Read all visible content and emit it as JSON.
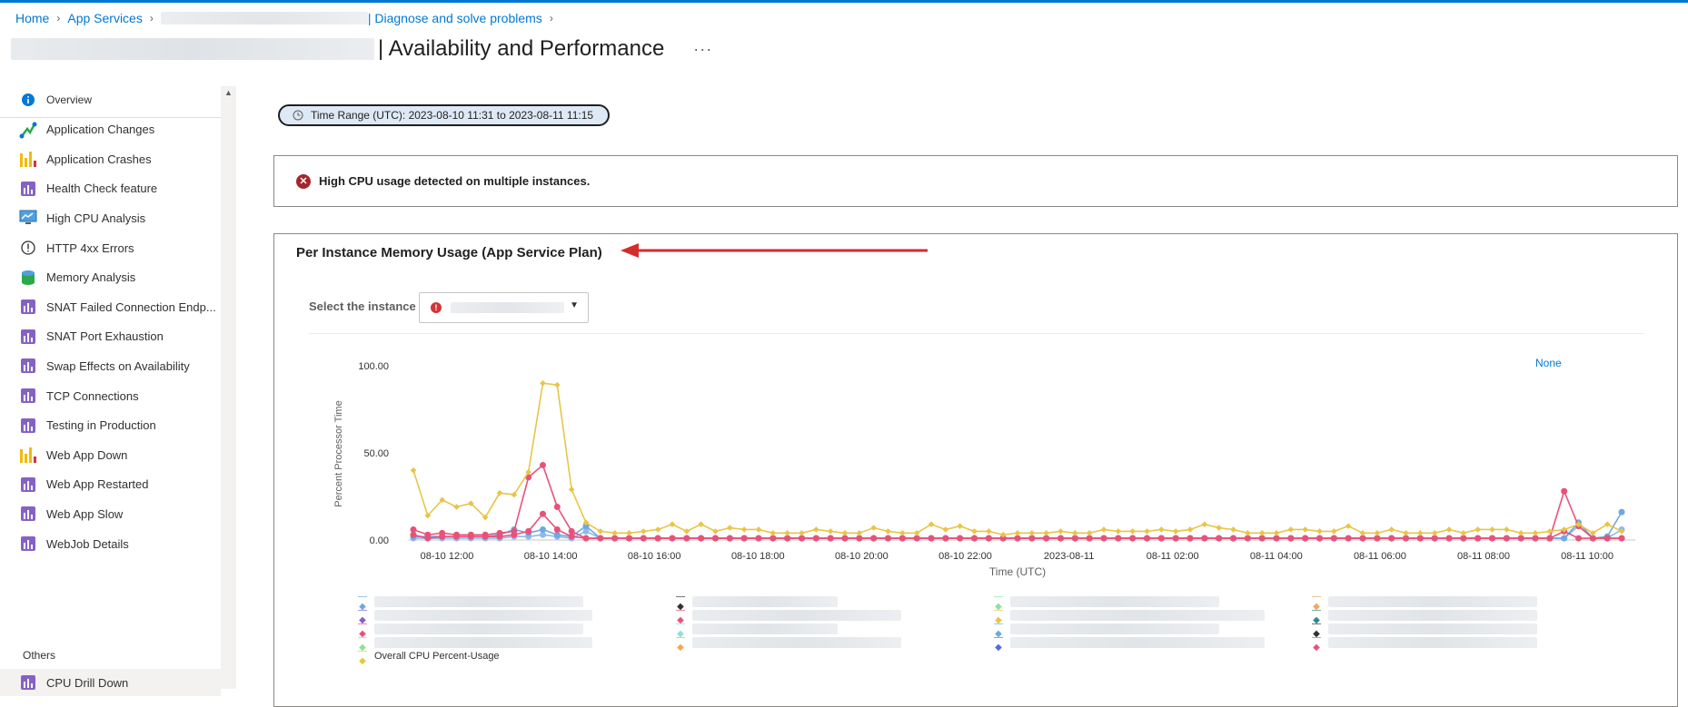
{
  "header": {
    "breadcrumb": [
      "Home",
      "App Services",
      "| Diagnose and solve problems"
    ],
    "title_suffix": "| Availability and Performance",
    "more": "···"
  },
  "sidebar": {
    "items": [
      {
        "label": "Overview",
        "icon": "info-icon",
        "color": "#0078d4"
      },
      {
        "label": "Application Changes",
        "icon": "changes-icon",
        "color": "#2ba84a"
      },
      {
        "label": "Application Crashes",
        "icon": "crash-chart-icon",
        "color": "#f2b90c"
      },
      {
        "label": "Health Check feature",
        "icon": "report-icon",
        "color": "#8661c5"
      },
      {
        "label": "High CPU Analysis",
        "icon": "monitor-icon",
        "color": "#0078d4"
      },
      {
        "label": "HTTP 4xx Errors",
        "icon": "error-circle-icon",
        "color": "#323130"
      },
      {
        "label": "Memory Analysis",
        "icon": "memory-icon",
        "color": "#2ba84a"
      },
      {
        "label": "SNAT Failed Connection Endp...",
        "icon": "report-icon",
        "color": "#8661c5"
      },
      {
        "label": "SNAT Port Exhaustion",
        "icon": "report-icon",
        "color": "#8661c5"
      },
      {
        "label": "Swap Effects on Availability",
        "icon": "report-icon",
        "color": "#8661c5"
      },
      {
        "label": "TCP Connections",
        "icon": "report-icon",
        "color": "#8661c5"
      },
      {
        "label": "Testing in Production",
        "icon": "report-icon",
        "color": "#8661c5"
      },
      {
        "label": "Web App Down",
        "icon": "crash-chart-icon",
        "color": "#f2b90c"
      },
      {
        "label": "Web App Restarted",
        "icon": "report-icon",
        "color": "#8661c5"
      },
      {
        "label": "Web App Slow",
        "icon": "report-icon",
        "color": "#8661c5"
      },
      {
        "label": "WebJob Details",
        "icon": "report-icon",
        "color": "#8661c5"
      }
    ],
    "others_heading": "Others",
    "others_items": [
      {
        "label": "CPU Drill Down",
        "icon": "report-icon",
        "color": "#8661c5"
      }
    ]
  },
  "main": {
    "time_range": "Time Range (UTC): 2023-08-10 11:31 to 2023-08-11 11:15",
    "alert": "High CPU usage detected on multiple instances.",
    "panel_title": "Per Instance Memory Usage (App Service Plan)",
    "select_label": "Select the instance",
    "none_link": "None",
    "legend_visible_label": "Overall CPU Percent-Usage"
  },
  "chart_data": {
    "type": "line",
    "xlabel": "Time (UTC)",
    "ylabel": "Percent Processor Time",
    "yticks": [
      "0.00",
      "50.00",
      "100.00"
    ],
    "ylim": [
      0,
      100
    ],
    "xticks": [
      "08-10 12:00",
      "08-10 14:00",
      "08-10 16:00",
      "08-10 18:00",
      "08-10 20:00",
      "08-10 22:00",
      "2023-08-11",
      "08-11 02:00",
      "08-11 04:00",
      "08-11 06:00",
      "08-11 08:00",
      "08-11 10:00"
    ],
    "series": [
      {
        "name": "Overall CPU Percent-Usage",
        "color": "#e8c547",
        "values": [
          40,
          14,
          23,
          19,
          21,
          13,
          27,
          26,
          39,
          90,
          89,
          29,
          10,
          5,
          4,
          4,
          5,
          6,
          9,
          5,
          9,
          5,
          7,
          6,
          6,
          4,
          4,
          4,
          6,
          5,
          4,
          4,
          7,
          5,
          4,
          4,
          9,
          6,
          8,
          5,
          5,
          3,
          4,
          4,
          4,
          5,
          4,
          4,
          6,
          5,
          5,
          5,
          6,
          5,
          6,
          9,
          7,
          6,
          4,
          4,
          4,
          6,
          6,
          5,
          5,
          8,
          4,
          4,
          6,
          4,
          4,
          4,
          6,
          4,
          6,
          6,
          6,
          4,
          4,
          5,
          6,
          9,
          4,
          9,
          5
        ]
      },
      {
        "color": "#e8527a",
        "values": [
          6,
          3,
          4,
          3,
          3,
          3,
          4,
          5,
          36,
          43,
          19,
          5,
          1,
          1,
          1,
          1,
          1,
          1,
          1,
          1,
          1,
          1,
          1,
          1,
          1,
          1,
          1,
          1,
          1,
          1,
          1,
          1,
          1,
          1,
          1,
          1,
          1,
          1,
          1,
          1,
          1,
          1,
          1,
          1,
          1,
          1,
          1,
          1,
          1,
          1,
          1,
          1,
          1,
          1,
          1,
          1,
          1,
          1,
          1,
          1,
          1,
          1,
          1,
          1,
          1,
          1,
          1,
          1,
          1,
          1,
          1,
          1,
          1,
          1,
          1,
          1,
          1,
          1,
          1,
          1,
          28,
          8,
          1,
          1,
          1
        ]
      },
      {
        "color": "#e8527a",
        "values": [
          3,
          1,
          2,
          2,
          2,
          2,
          2,
          3,
          5,
          15,
          6,
          2,
          1,
          1,
          1,
          1,
          1,
          1,
          1,
          1,
          1,
          1,
          1,
          1,
          1,
          1,
          1,
          1,
          1,
          1,
          1,
          1,
          1,
          1,
          1,
          1,
          1,
          1,
          1,
          1,
          1,
          1,
          1,
          1,
          1,
          1,
          1,
          1,
          1,
          1,
          1,
          1,
          1,
          1,
          1,
          1,
          1,
          1,
          1,
          1,
          1,
          1,
          1,
          1,
          1,
          1,
          1,
          1,
          1,
          1,
          1,
          1,
          1,
          1,
          1,
          1,
          1,
          1,
          1,
          1,
          5,
          1,
          1,
          1,
          1
        ]
      },
      {
        "color": "#6ea8e0",
        "values": [
          2,
          2,
          2,
          2,
          2,
          2,
          3,
          6,
          4,
          6,
          3,
          2,
          8,
          1,
          1,
          1,
          1,
          1,
          1,
          1,
          1,
          1,
          1,
          1,
          1,
          1,
          1,
          1,
          1,
          1,
          1,
          1,
          1,
          1,
          1,
          1,
          1,
          1,
          1,
          1,
          1,
          1,
          1,
          1,
          1,
          1,
          1,
          1,
          1,
          1,
          1,
          1,
          1,
          1,
          1,
          1,
          1,
          1,
          1,
          1,
          1,
          1,
          1,
          1,
          1,
          1,
          1,
          1,
          1,
          1,
          1,
          1,
          1,
          1,
          1,
          1,
          1,
          1,
          1,
          1,
          1,
          10,
          1,
          2,
          16
        ]
      },
      {
        "color": "#8fb9ea",
        "values": [
          1,
          1,
          1,
          1,
          1,
          1,
          1,
          2,
          2,
          3,
          2,
          1,
          5,
          1,
          1,
          1,
          1,
          1,
          1,
          1,
          1,
          1,
          1,
          1,
          1,
          1,
          1,
          1,
          1,
          1,
          1,
          1,
          1,
          1,
          1,
          1,
          1,
          1,
          1,
          1,
          1,
          1,
          1,
          1,
          1,
          1,
          1,
          1,
          1,
          1,
          1,
          1,
          1,
          1,
          1,
          1,
          1,
          1,
          1,
          1,
          1,
          1,
          1,
          1,
          1,
          1,
          1,
          1,
          1,
          1,
          1,
          1,
          1,
          1,
          1,
          1,
          1,
          1,
          1,
          1,
          1,
          8,
          1,
          1,
          6
        ]
      }
    ]
  },
  "legend_markers": [
    [
      "#6ea8e0",
      "#8661c5",
      "#e8527a",
      "#8fe0a0"
    ],
    [
      "#323130",
      "#e8527a",
      "#8fe0e0",
      "#f2a65a"
    ],
    [
      "#8fe0a0",
      "#e8c547",
      "#6ea8e0",
      "#4d6fd6"
    ],
    [
      "#f2a65a",
      "#2b8a8a",
      "#323130",
      "#e8527a"
    ]
  ]
}
